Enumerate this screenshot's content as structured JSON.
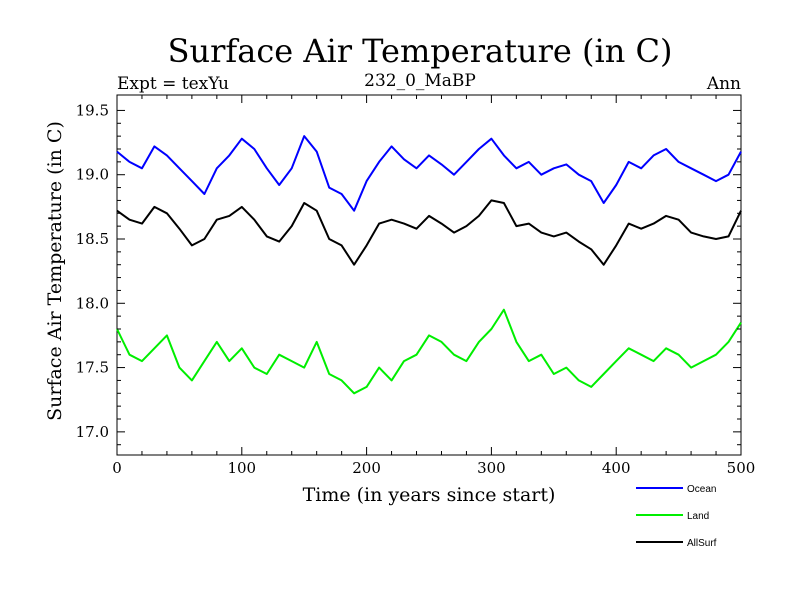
{
  "chart_data": {
    "type": "line",
    "title": "Surface Air Temperature (in C)",
    "subtitle_left": "Expt = texYu",
    "subtitle_center": "232_0_MaBP",
    "subtitle_right": "Ann",
    "xlabel": "Time (in years since start)",
    "ylabel": "Surface Air Temperature (in C)",
    "xlim": [
      0,
      500
    ],
    "ylim": [
      16.82,
      19.62
    ],
    "xticks": [
      0,
      100,
      200,
      300,
      400,
      500
    ],
    "xtick_labels": [
      "0",
      "100",
      "200",
      "300",
      "400",
      "500"
    ],
    "yticks": [
      17.0,
      17.5,
      18.0,
      18.5,
      19.0,
      19.5
    ],
    "ytick_labels": [
      "17.0",
      "17.5",
      "18.0",
      "18.5",
      "19.0",
      "19.5"
    ],
    "grid": false,
    "legend_position": "bottom-right",
    "x": [
      0,
      10,
      20,
      30,
      40,
      50,
      60,
      70,
      80,
      90,
      100,
      110,
      120,
      130,
      140,
      150,
      160,
      170,
      180,
      190,
      200,
      210,
      220,
      230,
      240,
      250,
      260,
      270,
      280,
      290,
      300,
      310,
      320,
      330,
      340,
      350,
      360,
      370,
      380,
      390,
      400,
      410,
      420,
      430,
      440,
      450,
      460,
      470,
      480,
      490,
      500
    ],
    "series": [
      {
        "name": "Ocean",
        "color": "#0000ff",
        "values": [
          19.18,
          19.1,
          19.05,
          19.22,
          19.15,
          19.05,
          18.95,
          18.85,
          19.05,
          19.15,
          19.28,
          19.2,
          19.05,
          18.92,
          19.05,
          19.3,
          19.18,
          18.9,
          18.85,
          18.72,
          18.95,
          19.1,
          19.22,
          19.12,
          19.05,
          19.15,
          19.08,
          19.0,
          19.1,
          19.2,
          19.28,
          19.15,
          19.05,
          19.1,
          19.0,
          19.05,
          19.08,
          19.0,
          18.95,
          18.78,
          18.92,
          19.1,
          19.05,
          19.15,
          19.2,
          19.1,
          19.05,
          19.0,
          18.95,
          19.0,
          19.18
        ]
      },
      {
        "name": "Land",
        "color": "#00ee00",
        "values": [
          17.8,
          17.6,
          17.55,
          17.65,
          17.75,
          17.5,
          17.4,
          17.55,
          17.7,
          17.55,
          17.65,
          17.5,
          17.45,
          17.6,
          17.55,
          17.5,
          17.7,
          17.45,
          17.4,
          17.3,
          17.35,
          17.5,
          17.4,
          17.55,
          17.6,
          17.75,
          17.7,
          17.6,
          17.55,
          17.7,
          17.8,
          17.95,
          17.7,
          17.55,
          17.6,
          17.45,
          17.5,
          17.4,
          17.35,
          17.45,
          17.55,
          17.65,
          17.6,
          17.55,
          17.65,
          17.6,
          17.5,
          17.55,
          17.6,
          17.7,
          17.85
        ]
      },
      {
        "name": "AllSurf",
        "color": "#000000",
        "values": [
          18.72,
          18.65,
          18.62,
          18.75,
          18.7,
          18.58,
          18.45,
          18.5,
          18.65,
          18.68,
          18.75,
          18.65,
          18.52,
          18.48,
          18.6,
          18.78,
          18.72,
          18.5,
          18.45,
          18.3,
          18.45,
          18.62,
          18.65,
          18.62,
          18.58,
          18.68,
          18.62,
          18.55,
          18.6,
          18.68,
          18.8,
          18.78,
          18.6,
          18.62,
          18.55,
          18.52,
          18.55,
          18.48,
          18.42,
          18.3,
          18.45,
          18.62,
          18.58,
          18.62,
          18.68,
          18.65,
          18.55,
          18.52,
          18.5,
          18.52,
          18.72
        ]
      }
    ]
  }
}
